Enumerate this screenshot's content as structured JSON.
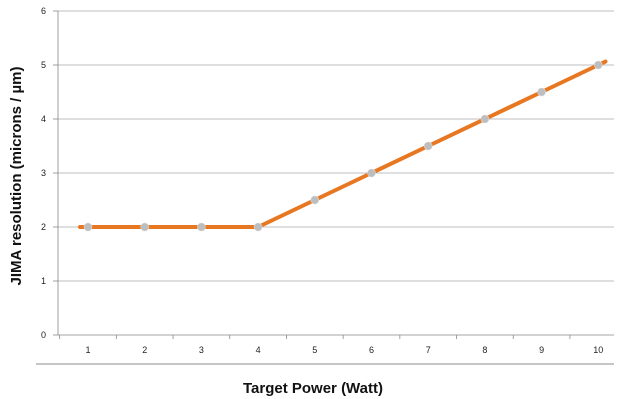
{
  "chart_data": {
    "type": "line",
    "title": "",
    "xlabel": "Target Power (Watt)",
    "ylabel": "JIMA resolution (microns / µm)",
    "x": [
      1,
      2,
      3,
      4,
      5,
      6,
      7,
      8,
      9,
      10
    ],
    "series": [
      {
        "name": "",
        "values": [
          2,
          2,
          2,
          2,
          2.5,
          3,
          3.5,
          4,
          4.5,
          5
        ]
      }
    ],
    "xticks": [
      "1",
      "2",
      "3",
      "4",
      "5",
      "6",
      "7",
      "8",
      "9",
      "10"
    ],
    "ylim": [
      0,
      6
    ],
    "yticks": [
      0,
      1,
      2,
      3,
      4,
      5,
      6
    ],
    "grid": "horizontal",
    "legend": "none",
    "colors": {
      "line": "#E87722",
      "marker": "#BEBEBE",
      "grid": "#AAAAAA",
      "axis": "#888888"
    }
  }
}
